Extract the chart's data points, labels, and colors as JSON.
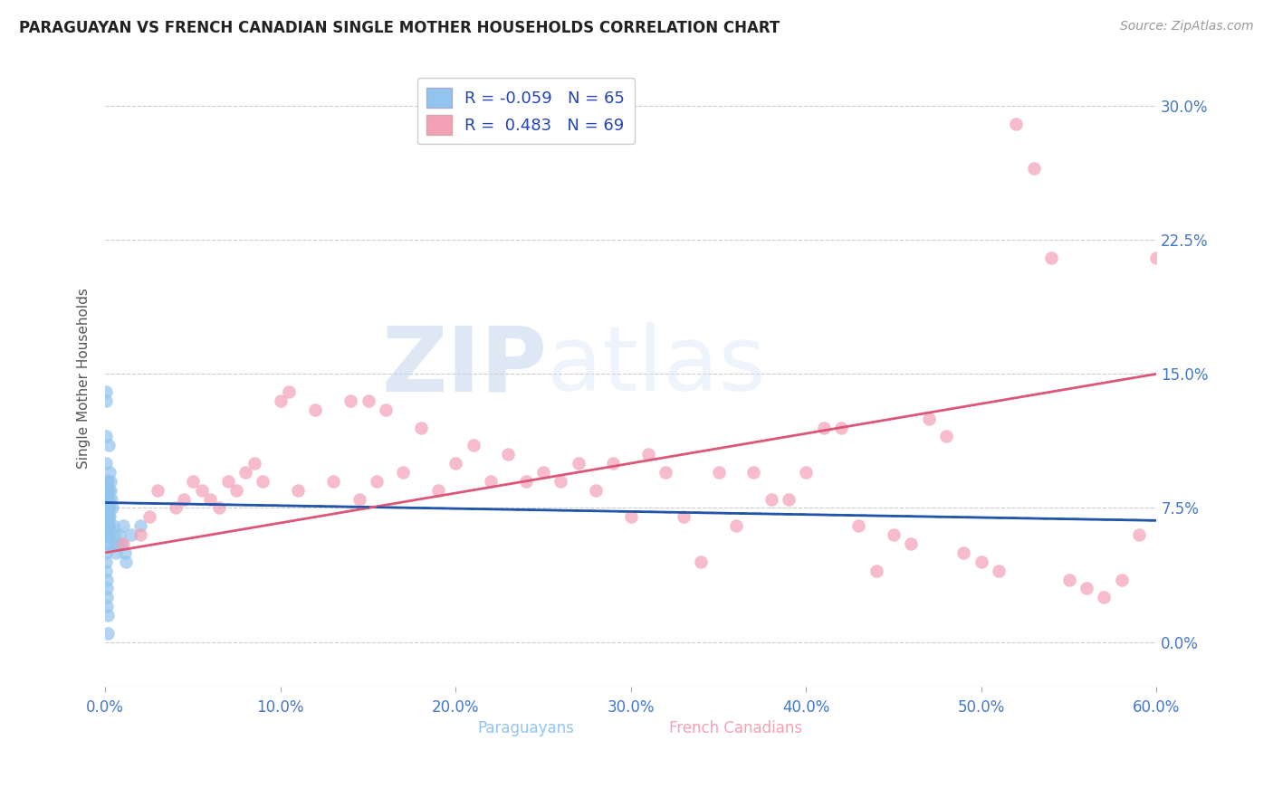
{
  "title": "PARAGUAYAN VS FRENCH CANADIAN SINGLE MOTHER HOUSEHOLDS CORRELATION CHART",
  "source": "Source: ZipAtlas.com",
  "ylabel": "Single Mother Households",
  "ytick_vals": [
    0.0,
    7.5,
    15.0,
    22.5,
    30.0
  ],
  "xlabel_vals": [
    0.0,
    10.0,
    20.0,
    30.0,
    40.0,
    50.0,
    60.0
  ],
  "xlim": [
    0.0,
    60.0
  ],
  "ylim": [
    -2.5,
    32.0
  ],
  "watermark_zip": "ZIP",
  "watermark_atlas": "atlas",
  "paraguayan_color": "#93c4ed",
  "french_canadian_color": "#f4a0b5",
  "paraguayan_line_color": "#2255aa",
  "french_canadian_line_color": "#dd5577",
  "R_paraguayan": -0.059,
  "N_paraguayan": 65,
  "R_french_canadian": 0.483,
  "N_french_canadian": 69,
  "paraguayan_x": [
    0.05,
    0.05,
    0.05,
    0.05,
    0.06,
    0.06,
    0.06,
    0.07,
    0.07,
    0.07,
    0.08,
    0.08,
    0.08,
    0.09,
    0.09,
    0.1,
    0.1,
    0.1,
    0.11,
    0.11,
    0.12,
    0.12,
    0.13,
    0.13,
    0.14,
    0.14,
    0.15,
    0.15,
    0.16,
    0.17,
    0.18,
    0.19,
    0.2,
    0.21,
    0.22,
    0.23,
    0.24,
    0.25,
    0.3,
    0.3,
    0.35,
    0.4,
    0.45,
    0.5,
    0.55,
    0.6,
    0.7,
    0.8,
    0.9,
    1.0,
    1.1,
    1.2,
    1.5,
    2.0,
    0.05,
    0.05,
    0.06,
    0.07,
    0.08,
    0.09,
    0.1,
    0.12,
    0.15,
    0.2,
    0.05
  ],
  "paraguayan_y": [
    13.5,
    11.5,
    10.0,
    8.5,
    8.0,
    7.5,
    7.0,
    9.0,
    8.5,
    8.0,
    7.5,
    7.0,
    6.5,
    7.0,
    6.5,
    6.0,
    8.0,
    7.5,
    7.0,
    6.5,
    6.0,
    5.5,
    7.0,
    6.5,
    6.0,
    5.5,
    9.0,
    8.5,
    8.0,
    7.5,
    7.0,
    6.5,
    8.5,
    8.0,
    7.5,
    7.0,
    6.5,
    9.5,
    9.0,
    8.5,
    8.0,
    7.5,
    6.5,
    6.0,
    5.5,
    5.0,
    5.5,
    6.0,
    5.5,
    6.5,
    5.0,
    4.5,
    6.0,
    6.5,
    5.0,
    4.5,
    4.0,
    3.5,
    3.0,
    2.5,
    2.0,
    1.5,
    0.5,
    11.0,
    14.0
  ],
  "french_canadian_x": [
    1.0,
    2.0,
    2.5,
    3.0,
    4.0,
    4.5,
    5.0,
    5.5,
    6.0,
    6.5,
    7.0,
    7.5,
    8.0,
    8.5,
    9.0,
    10.0,
    10.5,
    11.0,
    12.0,
    13.0,
    14.0,
    14.5,
    15.0,
    15.5,
    16.0,
    17.0,
    18.0,
    19.0,
    20.0,
    21.0,
    22.0,
    23.0,
    24.0,
    25.0,
    26.0,
    27.0,
    28.0,
    29.0,
    30.0,
    31.0,
    32.0,
    33.0,
    34.0,
    35.0,
    36.0,
    37.0,
    38.0,
    39.0,
    40.0,
    41.0,
    42.0,
    43.0,
    44.0,
    45.0,
    46.0,
    47.0,
    48.0,
    49.0,
    50.0,
    51.0,
    52.0,
    53.0,
    54.0,
    55.0,
    56.0,
    57.0,
    58.0,
    59.0,
    60.0
  ],
  "french_canadian_y": [
    5.5,
    6.0,
    7.0,
    8.5,
    7.5,
    8.0,
    9.0,
    8.5,
    8.0,
    7.5,
    9.0,
    8.5,
    9.5,
    10.0,
    9.0,
    13.5,
    14.0,
    8.5,
    13.0,
    9.0,
    13.5,
    8.0,
    13.5,
    9.0,
    13.0,
    9.5,
    12.0,
    8.5,
    10.0,
    11.0,
    9.0,
    10.5,
    9.0,
    9.5,
    9.0,
    10.0,
    8.5,
    10.0,
    7.0,
    10.5,
    9.5,
    7.0,
    4.5,
    9.5,
    6.5,
    9.5,
    8.0,
    8.0,
    9.5,
    12.0,
    12.0,
    6.5,
    4.0,
    6.0,
    5.5,
    12.5,
    11.5,
    5.0,
    4.5,
    4.0,
    29.0,
    26.5,
    21.5,
    3.5,
    3.0,
    2.5,
    3.5,
    6.0,
    21.5
  ],
  "par_line_x": [
    0.0,
    60.0
  ],
  "par_line_y": [
    7.8,
    6.8
  ],
  "fc_line_x": [
    0.0,
    60.0
  ],
  "fc_line_y": [
    5.0,
    15.0
  ]
}
